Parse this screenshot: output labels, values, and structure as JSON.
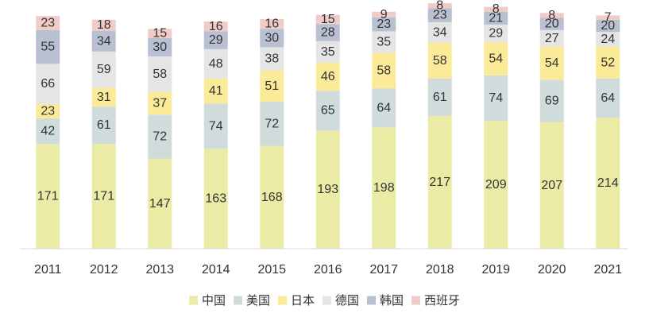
{
  "chart_data": {
    "type": "bar",
    "stacked": true,
    "title": "",
    "xlabel": "",
    "ylabel": "",
    "categories": [
      "2011",
      "2012",
      "2013",
      "2014",
      "2015",
      "2016",
      "2017",
      "2018",
      "2019",
      "2020",
      "2021"
    ],
    "series": [
      {
        "name": "中国",
        "color": "#eaeca6",
        "values": [
          171,
          171,
          147,
          163,
          168,
          193,
          198,
          217,
          209,
          207,
          214
        ]
      },
      {
        "name": "美国",
        "color": "#d0dcdc",
        "values": [
          42,
          61,
          72,
          74,
          72,
          65,
          64,
          61,
          74,
          69,
          64
        ]
      },
      {
        "name": "日本",
        "color": "#fbea98",
        "values": [
          23,
          31,
          37,
          41,
          51,
          46,
          58,
          58,
          54,
          54,
          52
        ]
      },
      {
        "name": "德国",
        "color": "#e5e5e5",
        "values": [
          66,
          59,
          58,
          48,
          38,
          35,
          35,
          34,
          29,
          27,
          24
        ]
      },
      {
        "name": "韩国",
        "color": "#b8c0d1",
        "values": [
          55,
          34,
          30,
          29,
          30,
          28,
          23,
          23,
          21,
          20,
          20
        ]
      },
      {
        "name": "西班牙",
        "color": "#f1cbc7",
        "values": [
          23,
          18,
          15,
          16,
          16,
          15,
          9,
          8,
          8,
          8,
          7
        ]
      }
    ],
    "data_labels": true,
    "legend": "bottom",
    "grid": false
  }
}
